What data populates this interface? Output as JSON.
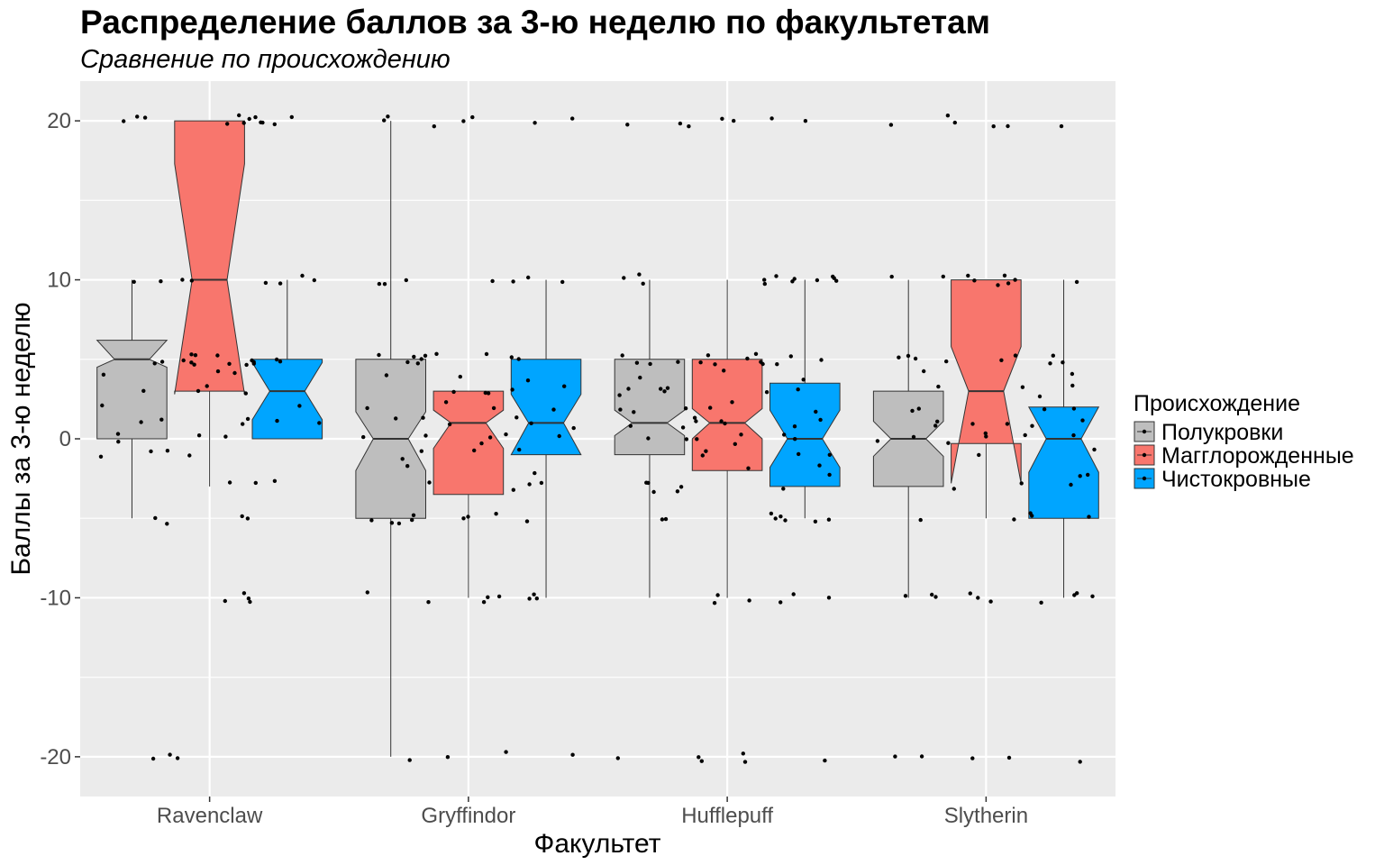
{
  "chart_data": {
    "type": "boxplot",
    "notched": true,
    "title": "Распределение баллов за 3-ю неделю по факультетам",
    "subtitle": "Сравнение по происхождению",
    "xlabel": "Факультет",
    "ylabel": "Баллы за 3-ю неделю",
    "ylim": [
      -22.5,
      22.5
    ],
    "yticks": [
      -20,
      -10,
      0,
      10,
      20
    ],
    "grid": true,
    "legend": {
      "title": "Происхождение",
      "placement": "right"
    },
    "categories": [
      "Ravenclaw",
      "Gryffindor",
      "Hufflepuff",
      "Slytherin"
    ],
    "series": [
      {
        "name": "Полукровки",
        "color": "#bebebe",
        "boxes": [
          {
            "whisker_low": -5,
            "q1": 0,
            "median": 5,
            "q3": 6.2,
            "whisker_high": 10,
            "notch_low": 4.5,
            "notch_high": 6.2
          },
          {
            "whisker_low": -20,
            "q1": -5,
            "median": 0,
            "q3": 5,
            "whisker_high": 20,
            "notch_low": -2,
            "notch_high": 1.7
          },
          {
            "whisker_low": -10,
            "q1": -1,
            "median": 1,
            "q3": 5,
            "whisker_high": 10,
            "notch_low": 0.2,
            "notch_high": 1.8
          },
          {
            "whisker_low": -10,
            "q1": -3,
            "median": 0,
            "q3": 3,
            "whisker_high": 10,
            "notch_low": -1.1,
            "notch_high": 1.1
          }
        ]
      },
      {
        "name": "Магглорожденные",
        "color": "#f8766d",
        "boxes": [
          {
            "whisker_low": -3,
            "q1": 3,
            "median": 10,
            "q3": 20,
            "whisker_high": 20,
            "notch_low": 2.8,
            "notch_high": 17.3
          },
          {
            "whisker_low": -10,
            "q1": -3.5,
            "median": 1,
            "q3": 3,
            "whisker_high": 3,
            "notch_low": -0.6,
            "notch_high": 1.8
          },
          {
            "whisker_low": -10,
            "q1": -2,
            "median": 1,
            "q3": 5,
            "whisker_high": 10,
            "notch_low": 0,
            "notch_high": 1.9
          },
          {
            "whisker_low": -5,
            "q1": -0.3,
            "median": 3,
            "q3": 10,
            "whisker_high": 10,
            "notch_low": -2.8,
            "notch_high": 5.8
          }
        ]
      },
      {
        "name": "Чистокровные",
        "color": "#00a5ff",
        "boxes": [
          {
            "whisker_low": 0,
            "q1": 0,
            "median": 3,
            "q3": 5,
            "whisker_high": 10,
            "notch_low": 1.2,
            "notch_high": 4.8
          },
          {
            "whisker_low": -10,
            "q1": -1,
            "median": 1,
            "q3": 5,
            "whisker_high": 10,
            "notch_low": -1,
            "notch_high": 2.8
          },
          {
            "whisker_low": -5,
            "q1": -3,
            "median": 0,
            "q3": 3.5,
            "whisker_high": 10,
            "notch_low": -1.8,
            "notch_high": 1.8
          },
          {
            "whisker_low": -10,
            "q1": -5,
            "median": 0,
            "q3": 2,
            "whisker_high": 10,
            "notch_low": -2.1,
            "notch_high": 2
          }
        ]
      }
    ],
    "points": [
      {
        "category": "Ravenclaw",
        "values": [
          20,
          20,
          20,
          20,
          20,
          20,
          20,
          20,
          20,
          20,
          20,
          20,
          10,
          10,
          10,
          10,
          10,
          10,
          10,
          10,
          5,
          5,
          5,
          5,
          5,
          5,
          5,
          5,
          5,
          5,
          5,
          5,
          5,
          5,
          5,
          4,
          4,
          4,
          3,
          3,
          3,
          3,
          2,
          2,
          1,
          1,
          1,
          1,
          1,
          1,
          0,
          0,
          0,
          0,
          -1,
          -1,
          -1,
          -1,
          -3,
          -3,
          -3,
          -5,
          -5,
          -5,
          -5,
          -10,
          -10,
          -10,
          -10,
          -20,
          -20,
          -20
        ]
      },
      {
        "category": "Gryffindor",
        "values": [
          20,
          20,
          20,
          20,
          20,
          20,
          20,
          10,
          10,
          10,
          10,
          10,
          10,
          10,
          5,
          5,
          5,
          5,
          5,
          5,
          5,
          5,
          5,
          5,
          4,
          4,
          4,
          3,
          3,
          3,
          3,
          3,
          2,
          2,
          2,
          2,
          1,
          1,
          1,
          1,
          1,
          1,
          0,
          0,
          0,
          0,
          0,
          0,
          -1,
          -1,
          -1,
          -1,
          -2,
          -2,
          -3,
          -3,
          -3,
          -3,
          -5,
          -5,
          -5,
          -5,
          -5,
          -5,
          -5,
          -5,
          -5,
          -10,
          -10,
          -10,
          -10,
          -10,
          -10,
          -10,
          -10,
          -20,
          -20,
          -20,
          -20
        ]
      },
      {
        "category": "Hufflepuff",
        "values": [
          20,
          20,
          20,
          20,
          20,
          20,
          20,
          10,
          10,
          10,
          10,
          10,
          10,
          10,
          10,
          10,
          10,
          10,
          10,
          5,
          5,
          5,
          5,
          5,
          5,
          5,
          5,
          5,
          5,
          5,
          5,
          5,
          5,
          4,
          4,
          4,
          3,
          3,
          3,
          3,
          3,
          3,
          3,
          2,
          2,
          2,
          2,
          2,
          2,
          1,
          1,
          1,
          1,
          1,
          1,
          1,
          1,
          0,
          0,
          0,
          0,
          0,
          0,
          0,
          -1,
          -1,
          -1,
          -1,
          -2,
          -2,
          -2,
          -3,
          -3,
          -3,
          -3,
          -3,
          -3,
          -5,
          -5,
          -5,
          -5,
          -5,
          -5,
          -5,
          -5,
          -10,
          -10,
          -10,
          -10,
          -10,
          -10,
          -20,
          -20,
          -20,
          -20,
          -20,
          -20
        ]
      },
      {
        "category": "Slytherin",
        "values": [
          20,
          20,
          20,
          20,
          20,
          20,
          10,
          10,
          10,
          10,
          10,
          10,
          10,
          10,
          10,
          5,
          5,
          5,
          5,
          5,
          5,
          5,
          5,
          5,
          4,
          4,
          3,
          3,
          3,
          3,
          2,
          2,
          2,
          2,
          1,
          1,
          1,
          1,
          1,
          1,
          0,
          0,
          0,
          0,
          0,
          0,
          0,
          -1,
          -1,
          -2,
          -2,
          -3,
          -3,
          -3,
          -5,
          -5,
          -5,
          -5,
          -5,
          -10,
          -10,
          -10,
          -10,
          -10,
          -10,
          -10,
          -10,
          -10,
          -10,
          -20,
          -20,
          -20,
          -20,
          -20
        ]
      }
    ]
  }
}
